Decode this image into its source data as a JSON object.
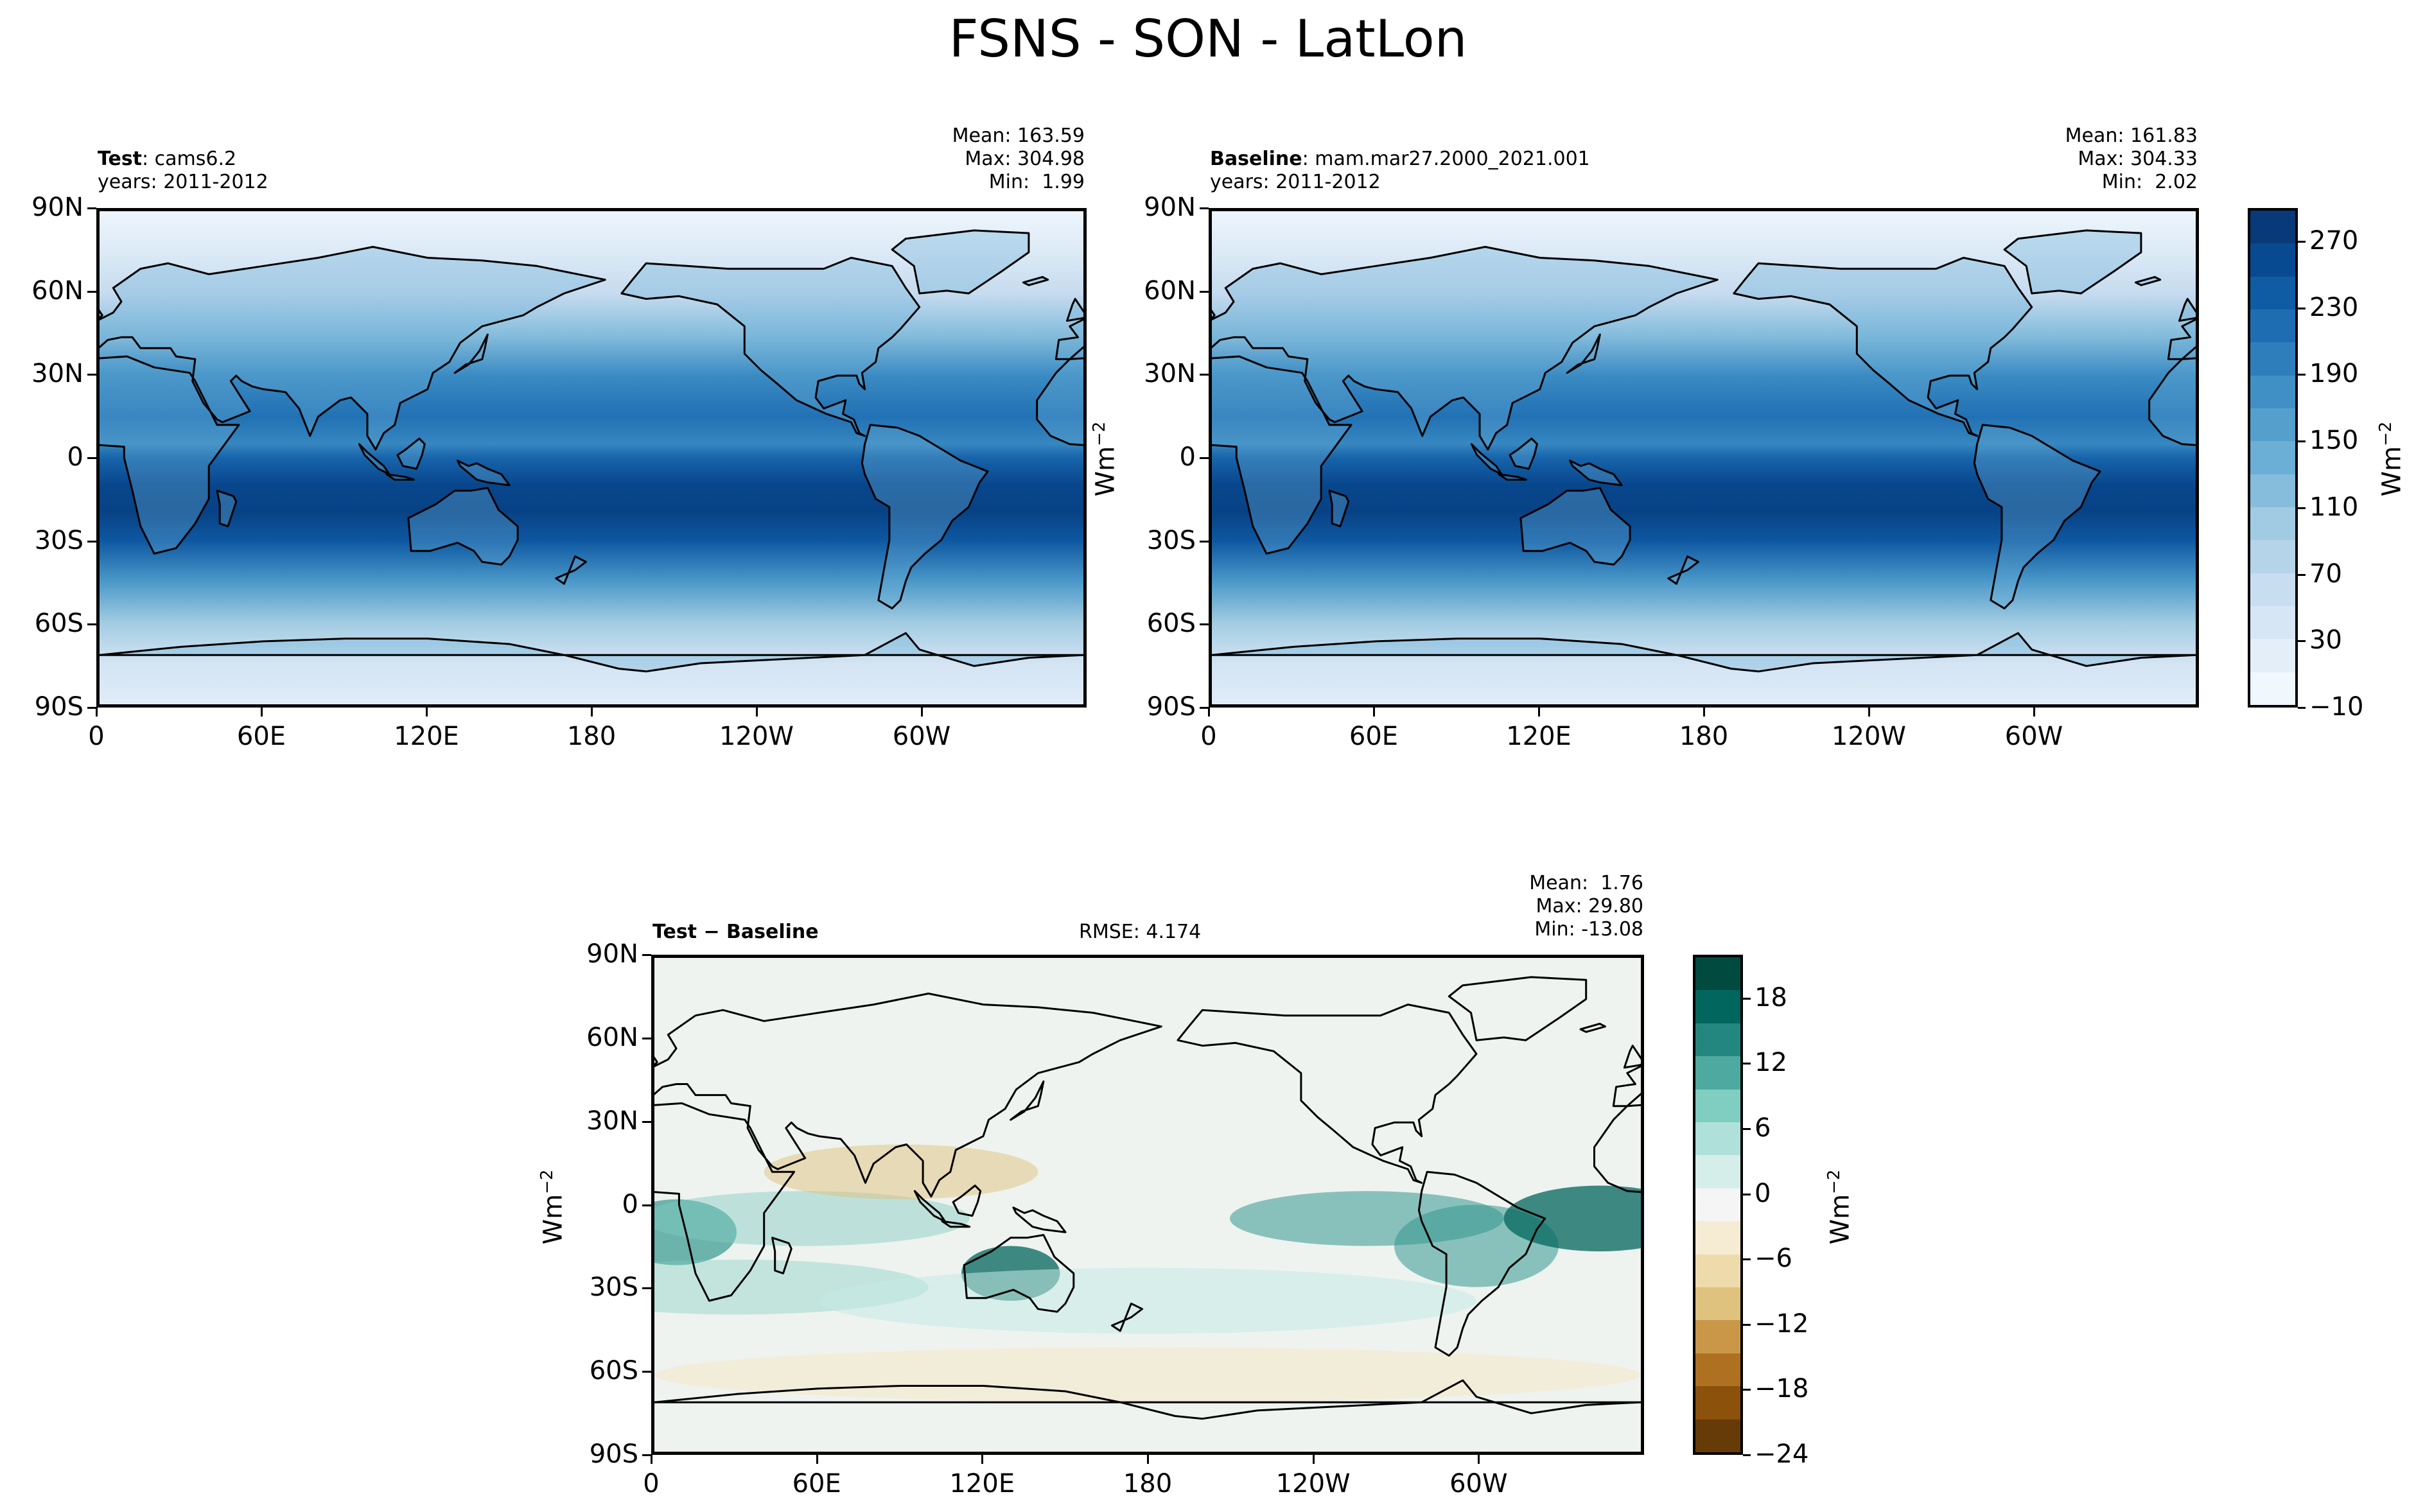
{
  "figure": {
    "title": "FSNS - SON - LatLon"
  },
  "chart_data": [
    {
      "type": "heatmap",
      "panel": "test",
      "label_bold": "Test",
      "label_rest": ": cams6.2",
      "years": "years: 2011-2012",
      "stats": {
        "mean": "Mean: 163.59",
        "max": "Max: 304.98",
        "min": "Min:  1.99"
      },
      "ylabel": "Wm",
      "ylabel_exp": "−2",
      "y_ticks": [
        "90N",
        "60N",
        "30N",
        "0",
        "30S",
        "60S",
        "90S"
      ],
      "x_ticks": [
        "0",
        "60E",
        "120E",
        "180",
        "120W",
        "60W"
      ],
      "ylim": [
        -90,
        90
      ],
      "xlim": [
        0,
        360
      ],
      "colormap": "Blues",
      "zonal_profile": [
        {
          "lat": 90,
          "value": 5
        },
        {
          "lat": 75,
          "value": 30
        },
        {
          "lat": 60,
          "value": 65
        },
        {
          "lat": 45,
          "value": 120
        },
        {
          "lat": 30,
          "value": 185
        },
        {
          "lat": 15,
          "value": 215
        },
        {
          "lat": 5,
          "value": 190
        },
        {
          "lat": 0,
          "value": 230
        },
        {
          "lat": -10,
          "value": 265
        },
        {
          "lat": -20,
          "value": 270
        },
        {
          "lat": -30,
          "value": 245
        },
        {
          "lat": -45,
          "value": 170
        },
        {
          "lat": -60,
          "value": 100
        },
        {
          "lat": -75,
          "value": 45
        },
        {
          "lat": -90,
          "value": 25
        }
      ]
    },
    {
      "type": "heatmap",
      "panel": "baseline",
      "label_bold": "Baseline",
      "label_rest": ": mam.mar27.2000_2021.001",
      "years": "years: 2011-2012",
      "stats": {
        "mean": "Mean: 161.83",
        "max": "Max: 304.33",
        "min": "Min:  2.02"
      },
      "y_ticks": [
        "90N",
        "60N",
        "30N",
        "0",
        "30S",
        "60S",
        "90S"
      ],
      "x_ticks": [
        "0",
        "60E",
        "120E",
        "180",
        "120W",
        "60W"
      ],
      "ylim": [
        -90,
        90
      ],
      "xlim": [
        0,
        360
      ],
      "colormap": "Blues",
      "colorbar": {
        "ticks": [
          "270",
          "230",
          "190",
          "150",
          "110",
          "70",
          "30",
          "−10"
        ],
        "range": [
          -10,
          290
        ],
        "label": "Wm",
        "label_exp": "−2"
      }
    },
    {
      "type": "heatmap",
      "panel": "diff",
      "label_bold": "Test − Baseline",
      "rmse": "RMSE: 4.174",
      "stats": {
        "mean": "Mean:  1.76",
        "max": "Max: 29.80",
        "min": "Min: -13.08"
      },
      "ylabel": "Wm",
      "ylabel_exp": "−2",
      "y_ticks": [
        "90N",
        "60N",
        "30N",
        "0",
        "30S",
        "60S",
        "90S"
      ],
      "x_ticks": [
        "0",
        "60E",
        "120E",
        "180",
        "120W",
        "60W"
      ],
      "ylim": [
        -90,
        90
      ],
      "xlim": [
        0,
        360
      ],
      "colormap": "BrBG",
      "colorbar": {
        "ticks": [
          "18",
          "12",
          "6",
          "0",
          "−6",
          "−12",
          "−18",
          "−24"
        ],
        "range": [
          -24,
          22
        ],
        "label": "Wm",
        "label_exp": "−2"
      }
    }
  ]
}
